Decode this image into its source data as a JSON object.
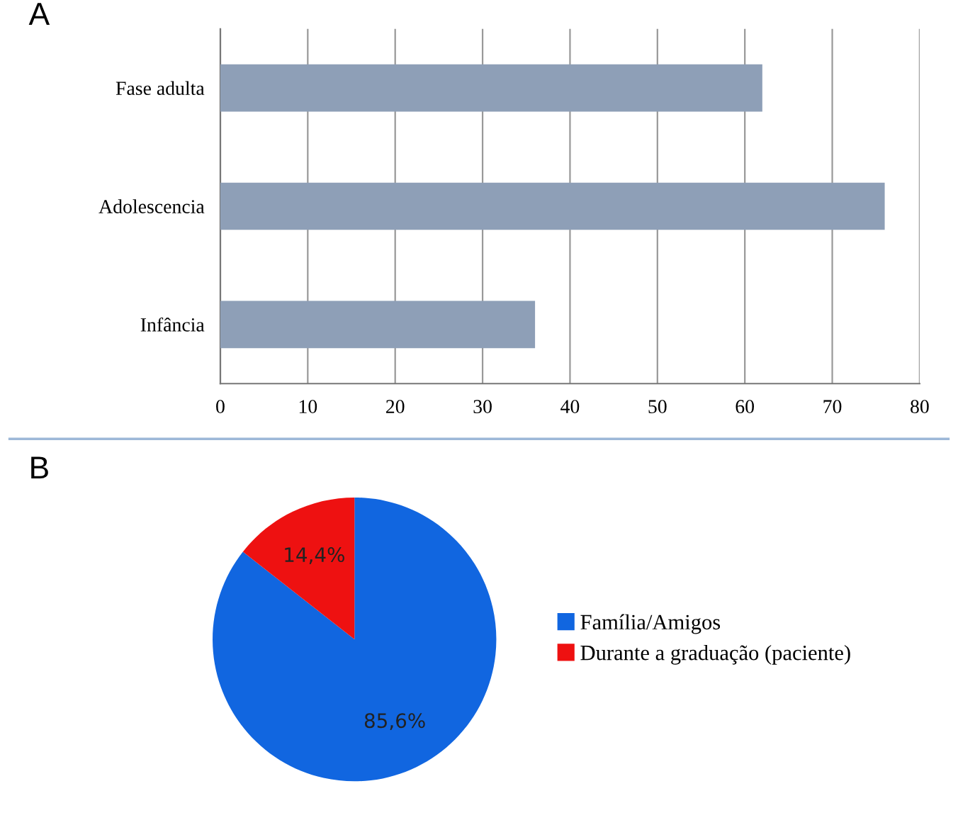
{
  "chart_data": [
    {
      "type": "bar",
      "title": "A",
      "orientation": "horizontal",
      "categories": [
        "Fase adulta",
        "Adolescencia",
        "Infância"
      ],
      "values": [
        62,
        76,
        36
      ],
      "color": "#8e9fb7",
      "xlim": [
        0,
        80
      ],
      "xticks": [
        0,
        10,
        20,
        30,
        40,
        50,
        60,
        70,
        80
      ],
      "grid": "x"
    },
    {
      "type": "pie",
      "title": "B",
      "categories": [
        "Família/Amigos",
        "Durante a graduação (paciente)"
      ],
      "values": [
        85.6,
        14.4
      ],
      "colors": [
        "#1166e0",
        "#ee1111"
      ],
      "value_labels": [
        "85,6%",
        "14,4%"
      ],
      "legend": "right"
    }
  ]
}
